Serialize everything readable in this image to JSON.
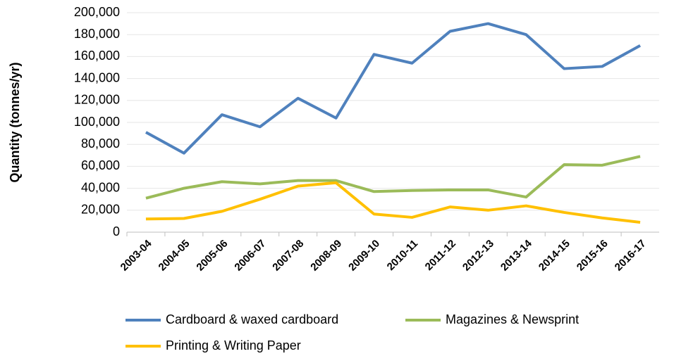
{
  "chart_data": {
    "type": "line",
    "y_label": "Quantity (tonnes/yr)",
    "categories": [
      "2003-04",
      "2004-05",
      "2005-06",
      "2006-07",
      "2007-08",
      "2008-09",
      "2009-10",
      "2010-11",
      "2011-12",
      "2012-13",
      "2013-14",
      "2014-15",
      "2015-16",
      "2016-17"
    ],
    "series": [
      {
        "name": "Cardboard & waxed cardboard",
        "color": "#4f81bd",
        "values": [
          91000,
          72000,
          107000,
          96000,
          122000,
          104000,
          162000,
          154000,
          183000,
          190000,
          180000,
          149000,
          151000,
          170000
        ]
      },
      {
        "name": "Magazines & Newsprint",
        "color": "#9bbb59",
        "values": [
          31000,
          40000,
          46000,
          44000,
          47000,
          47000,
          37000,
          38000,
          38500,
          38500,
          32000,
          61500,
          61000,
          69000
        ]
      },
      {
        "name": "Printing & Writing Paper",
        "color": "#ffc000",
        "values": [
          12000,
          12500,
          19000,
          30000,
          42000,
          45000,
          16500,
          13500,
          23000,
          20000,
          24000,
          18000,
          13000,
          9000
        ]
      }
    ],
    "ylim": [
      0,
      200000
    ],
    "yticks": [
      0,
      {
        "value": 20000,
        "label": "20,000"
      },
      {
        "value": 40000,
        "label": "40,000"
      },
      {
        "value": 60000,
        "label": "60,000"
      },
      {
        "value": 80000,
        "label": "80,000"
      },
      {
        "value": 100000,
        "label": "100,000"
      },
      {
        "value": 120000,
        "label": "120,000"
      },
      {
        "value": 140000,
        "label": "140,000"
      },
      {
        "value": 160000,
        "label": "160,000"
      },
      {
        "value": 180000,
        "label": "180,000"
      },
      {
        "value": 200000,
        "label": "200,000"
      }
    ],
    "grid": true,
    "legend": "bottom"
  }
}
